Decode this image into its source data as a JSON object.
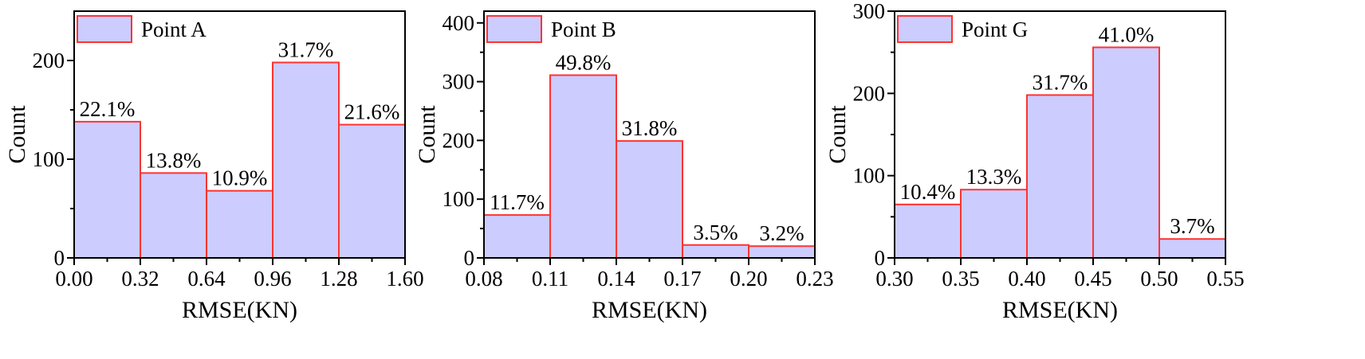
{
  "colors": {
    "bar_fill": "#ccccff",
    "bar_stroke": "#ff3333",
    "axis": "#000000"
  },
  "chart_data": [
    {
      "type": "bar",
      "legend": "Point A",
      "legend_position": "top-left",
      "xlabel": "RMSE(KN)",
      "ylabel": "Count",
      "bin_edges": [
        0.0,
        0.32,
        0.64,
        0.96,
        1.28,
        1.6
      ],
      "x_tick_labels": [
        "0.00",
        "0.32",
        "0.64",
        "0.96",
        "1.28",
        "1.60"
      ],
      "values": [
        138,
        86,
        68,
        198,
        135
      ],
      "percent_labels": [
        "22.1%",
        "13.8%",
        "10.9%",
        "31.7%",
        "21.6%"
      ],
      "ylim": [
        0,
        250
      ],
      "y_ticks": [
        0,
        100,
        200
      ],
      "y_minor_ticks": [
        50,
        150
      ],
      "xlim": [
        0.0,
        1.6
      ]
    },
    {
      "type": "bar",
      "legend": "Point B",
      "legend_position": "top-left",
      "xlabel": "RMSE(KN)",
      "ylabel": "Count",
      "bin_edges": [
        0.08,
        0.11,
        0.14,
        0.17,
        0.2,
        0.23
      ],
      "x_tick_labels": [
        "0.08",
        "0.11",
        "0.14",
        "0.17",
        "0.20",
        "0.23"
      ],
      "values": [
        73,
        311,
        199,
        22,
        20
      ],
      "percent_labels": [
        "11.7%",
        "49.8%",
        "31.8%",
        "3.5%",
        "3.2%"
      ],
      "ylim": [
        0,
        420
      ],
      "y_ticks": [
        0,
        100,
        200,
        300,
        400
      ],
      "y_minor_ticks": [
        50,
        150,
        250,
        350
      ],
      "xlim": [
        0.08,
        0.23
      ]
    },
    {
      "type": "bar",
      "legend": "Point G",
      "legend_position": "top-left",
      "xlabel": "RMSE(KN)",
      "ylabel": "Count",
      "bin_edges": [
        0.3,
        0.35,
        0.4,
        0.45,
        0.5,
        0.55
      ],
      "x_tick_labels": [
        "0.30",
        "0.35",
        "0.40",
        "0.45",
        "0.50",
        "0.55"
      ],
      "values": [
        65,
        83,
        198,
        256,
        23
      ],
      "percent_labels": [
        "10.4%",
        "13.3%",
        "31.7%",
        "41.0%",
        "3.7%"
      ],
      "ylim": [
        0,
        300
      ],
      "y_ticks": [
        0,
        100,
        200,
        300
      ],
      "y_minor_ticks": [
        50,
        150,
        250
      ],
      "xlim": [
        0.3,
        0.55
      ]
    }
  ]
}
